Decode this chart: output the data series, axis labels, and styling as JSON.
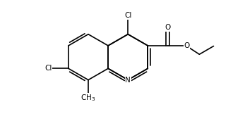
{
  "bg_color": "#ffffff",
  "bond_color": "#000000",
  "atom_color": "#000000",
  "bond_width": 1.2,
  "font_size": 7.5,
  "figsize": [
    3.3,
    1.72
  ],
  "dpi": 100,
  "xlim": [
    -0.5,
    9.5
  ],
  "ylim": [
    -0.3,
    5.0
  ]
}
